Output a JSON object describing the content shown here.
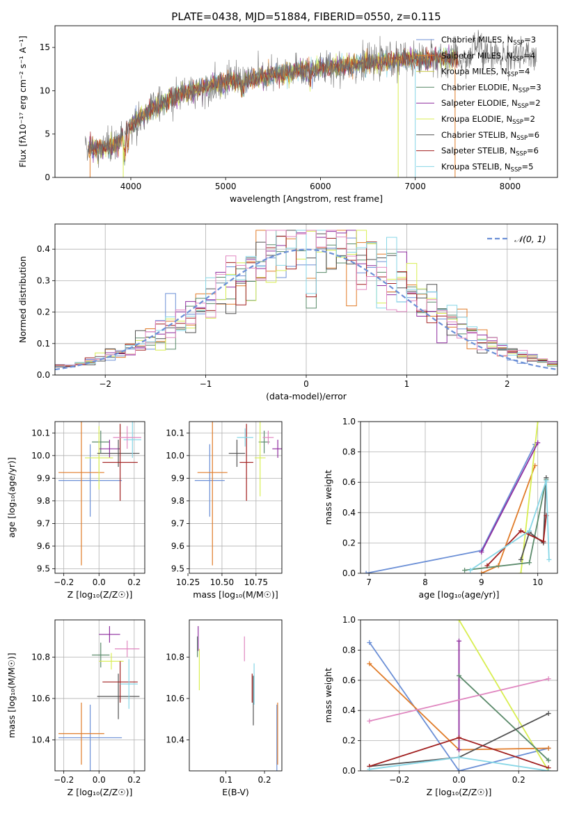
{
  "title": "PLATE=0438, MJD=51884, FIBERID=0550, z=0.115",
  "colors": [
    "#6b8fd6",
    "#e07b28",
    "#c9c94a",
    "#5a8a6a",
    "#8e2c9e",
    "#d8ee50",
    "#505050",
    "#a01e1e",
    "#86d6e6",
    "#e087c0"
  ],
  "chart_data": [
    {
      "id": "spectrum",
      "type": "line",
      "xlabel": "wavelength [Angstrom, rest frame]",
      "ylabel": "Flux [fλ10⁻¹⁷ erg cm⁻² s⁻¹ A⁻¹]",
      "xlim": [
        3200,
        8500
      ],
      "ylim": [
        0,
        17.5
      ],
      "xticks": [
        4000,
        5000,
        6000,
        7000,
        8000
      ],
      "yticks": [
        0,
        5,
        10,
        15
      ],
      "grid": false,
      "legend_position": "top-right",
      "legend": [
        {
          "label": "Chabrier MILES, N_SSP=3",
          "color": "#6b8fd6"
        },
        {
          "label": "Salpeter MILES, N_SSP=4",
          "color": "#e07b28"
        },
        {
          "label": "Kroupa MILES, N_SSP=4",
          "color": "#c9c94a"
        },
        {
          "label": "Chabrier ELODIE, N_SSP=3",
          "color": "#5a8a6a"
        },
        {
          "label": "Salpeter ELODIE, N_SSP=2",
          "color": "#8e2c9e"
        },
        {
          "label": "Kroupa ELODIE, N_SSP=2",
          "color": "#d8ee50"
        },
        {
          "label": "Chabrier STELIB, N_SSP=6",
          "color": "#505050"
        },
        {
          "label": "Salpeter STELIB, N_SSP=6",
          "color": "#a01e1e"
        },
        {
          "label": "Kroupa STELIB, N_SSP=5",
          "color": "#86d6e6"
        }
      ],
      "continuum": [
        {
          "x": 3550,
          "y": 3.3
        },
        {
          "x": 3700,
          "y": 3.4
        },
        {
          "x": 3850,
          "y": 3.8
        },
        {
          "x": 3950,
          "y": 5.2
        },
        {
          "x": 4050,
          "y": 6.5
        },
        {
          "x": 4200,
          "y": 7.8
        },
        {
          "x": 4350,
          "y": 8.6
        },
        {
          "x": 4500,
          "y": 9.5
        },
        {
          "x": 4700,
          "y": 10.2
        },
        {
          "x": 4900,
          "y": 10.8
        },
        {
          "x": 5100,
          "y": 11.2
        },
        {
          "x": 5300,
          "y": 11.4
        },
        {
          "x": 5500,
          "y": 11.8
        },
        {
          "x": 5700,
          "y": 12.2
        },
        {
          "x": 5900,
          "y": 12.4
        },
        {
          "x": 6100,
          "y": 12.7
        },
        {
          "x": 6300,
          "y": 12.9
        },
        {
          "x": 6500,
          "y": 13.1
        },
        {
          "x": 6700,
          "y": 13.4
        },
        {
          "x": 6900,
          "y": 13.6
        },
        {
          "x": 7100,
          "y": 13.7
        },
        {
          "x": 7300,
          "y": 13.8
        },
        {
          "x": 7500,
          "y": 13.6
        },
        {
          "x": 7700,
          "y": 13.9
        },
        {
          "x": 7900,
          "y": 14.0
        },
        {
          "x": 8100,
          "y": 14.1
        },
        {
          "x": 8250,
          "y": 13.8
        }
      ]
    },
    {
      "id": "residuals",
      "type": "histogram",
      "xlabel": "(data-model)/error",
      "ylabel": "Normed distribution",
      "xlim": [
        -2.5,
        2.5
      ],
      "ylim": [
        0,
        0.48
      ],
      "xticks": [
        -2,
        -1,
        0,
        1,
        2
      ],
      "yticks": [
        0.0,
        0.1,
        0.2,
        0.3,
        0.4
      ],
      "grid": true,
      "legend_position": "top-right",
      "legend": [
        {
          "label": "𝒩(0, 1)",
          "color": "#6b8fd6"
        }
      ],
      "bin_width": 0.1
    },
    {
      "id": "age-vs-Z",
      "type": "scatter",
      "xlabel": "Z [log₁₀(Z/Z☉)]",
      "ylabel": "age  [log₁₀(age/yr)]",
      "xlim": [
        -0.25,
        0.26
      ],
      "ylim": [
        9.48,
        10.15
      ],
      "xticks": [
        -0.2,
        0.0,
        0.2
      ],
      "xticklabels": [
        "−0.2",
        "0.0",
        "0.2"
      ],
      "yticks": [
        9.5,
        9.6,
        9.7,
        9.8,
        9.9,
        10.0,
        10.1
      ],
      "grid": true,
      "points": [
        {
          "x": -0.05,
          "y": 9.89,
          "xerr": 0.18,
          "yerr": 0.16,
          "color": "#6b8fd6"
        },
        {
          "x": -0.1,
          "y": 9.925,
          "xerr": 0.13,
          "yerr": 0.41,
          "color": "#e07b28"
        },
        {
          "x": 0.01,
          "y": 10.06,
          "xerr": 0.05,
          "yerr": 0.05,
          "color": "#5a8a6a"
        },
        {
          "x": 0.06,
          "y": 10.03,
          "xerr": 0.06,
          "yerr": 0.04,
          "color": "#8e2c9e"
        },
        {
          "x": 0.0,
          "y": 9.99,
          "xerr": 0.08,
          "yerr": 0.14,
          "color": "#d8ee50"
        },
        {
          "x": 0.11,
          "y": 10.01,
          "xerr": 0.12,
          "yerr": 0.06,
          "color": "#505050"
        },
        {
          "x": 0.12,
          "y": 9.97,
          "xerr": 0.1,
          "yerr": 0.17,
          "color": "#a01e1e"
        },
        {
          "x": 0.19,
          "y": 10.07,
          "xerr": 0.05,
          "yerr": 0.08,
          "color": "#86d6e6"
        },
        {
          "x": 0.16,
          "y": 10.08,
          "xerr": 0.08,
          "yerr": 0.05,
          "color": "#e087c0"
        }
      ]
    },
    {
      "id": "age-vs-mass",
      "type": "scatter",
      "xlabel": "mass [log₁₀(M/M☉)]",
      "ylabel": "",
      "xlim": [
        10.26,
        10.94
      ],
      "ylim": [
        9.48,
        10.15
      ],
      "xticks": [
        10.25,
        10.5,
        10.75
      ],
      "xticklabels": [
        "10.25",
        "10.50",
        "10.75"
      ],
      "yticks": [
        9.5,
        9.6,
        9.7,
        9.8,
        9.9,
        10.0,
        10.1
      ],
      "grid": true,
      "points": [
        {
          "x": 10.41,
          "y": 9.89,
          "xerr": 0.11,
          "yerr": 0.16,
          "color": "#6b8fd6"
        },
        {
          "x": 10.43,
          "y": 9.925,
          "xerr": 0.11,
          "yerr": 0.41,
          "color": "#e07b28"
        },
        {
          "x": 10.81,
          "y": 10.06,
          "xerr": 0.04,
          "yerr": 0.05,
          "color": "#5a8a6a"
        },
        {
          "x": 10.91,
          "y": 10.03,
          "xerr": 0.04,
          "yerr": 0.04,
          "color": "#8e2c9e"
        },
        {
          "x": 10.78,
          "y": 9.99,
          "xerr": 0.04,
          "yerr": 0.17,
          "color": "#d8ee50"
        },
        {
          "x": 10.61,
          "y": 10.01,
          "xerr": 0.06,
          "yerr": 0.06,
          "color": "#505050"
        },
        {
          "x": 10.68,
          "y": 9.97,
          "xerr": 0.05,
          "yerr": 0.17,
          "color": "#a01e1e"
        },
        {
          "x": 10.67,
          "y": 10.08,
          "xerr": 0.06,
          "yerr": 0.04,
          "color": "#86d6e6"
        },
        {
          "x": 10.84,
          "y": 10.08,
          "xerr": 0.04,
          "yerr": 0.03,
          "color": "#e087c0"
        }
      ]
    },
    {
      "id": "weight-vs-age",
      "type": "line",
      "xlabel": "age  [log₁₀(age/yr)]",
      "ylabel": "mass weight",
      "xlim": [
        6.85,
        10.35
      ],
      "ylim": [
        0,
        1.0
      ],
      "xticks": [
        7,
        8,
        9,
        10
      ],
      "yticks": [
        0.0,
        0.2,
        0.4,
        0.6,
        0.8,
        1.0
      ],
      "grid": true,
      "series": [
        {
          "color": "#6b8fd6",
          "x": [
            6.95,
            9.0,
            9.95
          ],
          "y": [
            0.0,
            0.15,
            0.85
          ]
        },
        {
          "color": "#e07b28",
          "x": [
            9.0,
            9.3,
            9.95
          ],
          "y": [
            0.0,
            0.05,
            0.71
          ]
        },
        {
          "color": "#d8ee50",
          "x": [
            9.7,
            10.0
          ],
          "y": [
            0.0,
            1.0
          ]
        },
        {
          "color": "#8e2c9e",
          "x": [
            9.0,
            10.0
          ],
          "y": [
            0.14,
            0.86
          ]
        },
        {
          "color": "#5a8a6a",
          "x": [
            8.7,
            9.85,
            10.15
          ],
          "y": [
            0.02,
            0.07,
            0.62
          ]
        },
        {
          "color": "#505050",
          "x": [
            9.7,
            9.85,
            10.1,
            10.15
          ],
          "y": [
            0.09,
            0.27,
            0.2,
            0.63
          ]
        },
        {
          "color": "#a01e1e",
          "x": [
            9.1,
            9.7,
            10.1,
            10.15
          ],
          "y": [
            0.05,
            0.28,
            0.21,
            0.38
          ]
        },
        {
          "color": "#86d6e6",
          "x": [
            8.8,
            9.85,
            10.15,
            10.2
          ],
          "y": [
            0.02,
            0.28,
            0.61,
            0.09
          ]
        }
      ]
    },
    {
      "id": "mass-vs-Z",
      "type": "scatter",
      "xlabel": "Z [log₁₀(Z/Z☉)]",
      "ylabel": "mass [log₁₀(M/M☉)]",
      "xlim": [
        -0.25,
        0.26
      ],
      "ylim": [
        10.25,
        10.98
      ],
      "xticks": [
        -0.2,
        0.0,
        0.2
      ],
      "xticklabels": [
        "−0.2",
        "0.0",
        "0.2"
      ],
      "yticks": [
        10.4,
        10.6,
        10.8
      ],
      "grid": true,
      "points": [
        {
          "x": -0.05,
          "y": 10.41,
          "xerr": 0.18,
          "yerr": 0.16,
          "color": "#6b8fd6"
        },
        {
          "x": -0.1,
          "y": 10.43,
          "xerr": 0.13,
          "yerr": 0.15,
          "color": "#e07b28"
        },
        {
          "x": 0.01,
          "y": 10.81,
          "xerr": 0.05,
          "yerr": 0.06,
          "color": "#5a8a6a"
        },
        {
          "x": 0.06,
          "y": 10.91,
          "xerr": 0.06,
          "yerr": 0.04,
          "color": "#8e2c9e"
        },
        {
          "x": 0.07,
          "y": 10.78,
          "xerr": 0.07,
          "yerr": 0.04,
          "color": "#d8ee50"
        },
        {
          "x": 0.11,
          "y": 10.61,
          "xerr": 0.12,
          "yerr": 0.11,
          "color": "#505050"
        },
        {
          "x": 0.12,
          "y": 10.68,
          "xerr": 0.1,
          "yerr": 0.1,
          "color": "#a01e1e"
        },
        {
          "x": 0.17,
          "y": 10.67,
          "xerr": 0.05,
          "yerr": 0.12,
          "color": "#86d6e6"
        },
        {
          "x": 0.16,
          "y": 10.84,
          "xerr": 0.07,
          "yerr": 0.04,
          "color": "#e087c0"
        }
      ]
    },
    {
      "id": "mass-vs-ebv",
      "type": "scatter",
      "xlabel": "E(B-V)",
      "ylabel": "",
      "xlim": [
        0.005,
        0.245
      ],
      "ylim": [
        10.25,
        10.98
      ],
      "xticks": [
        0.1,
        0.2
      ],
      "xticklabels": [
        "0.1",
        "0.2"
      ],
      "yticks": [
        10.4,
        10.6,
        10.8
      ],
      "grid": false,
      "points": [
        {
          "x": 0.026,
          "y": 10.85,
          "xerr": 0.0,
          "yerr": 0.05,
          "color": "#5a8a6a"
        },
        {
          "x": 0.028,
          "y": 10.89,
          "xerr": 0.0,
          "yerr": 0.06,
          "color": "#8e2c9e"
        },
        {
          "x": 0.031,
          "y": 10.74,
          "xerr": 0.0,
          "yerr": 0.1,
          "color": "#d8ee50"
        },
        {
          "x": 0.148,
          "y": 10.84,
          "xerr": 0.0,
          "yerr": 0.06,
          "color": "#e087c0"
        },
        {
          "x": 0.168,
          "y": 10.65,
          "xerr": 0.0,
          "yerr": 0.07,
          "color": "#a01e1e"
        },
        {
          "x": 0.171,
          "y": 10.59,
          "xerr": 0.0,
          "yerr": 0.12,
          "color": "#505050"
        },
        {
          "x": 0.173,
          "y": 10.67,
          "xerr": 0.0,
          "yerr": 0.1,
          "color": "#86d6e6"
        },
        {
          "x": 0.232,
          "y": 10.41,
          "xerr": 0.0,
          "yerr": 0.16,
          "color": "#6b8fd6"
        },
        {
          "x": 0.234,
          "y": 10.43,
          "xerr": 0.0,
          "yerr": 0.15,
          "color": "#e07b28"
        }
      ]
    },
    {
      "id": "weight-vs-Z",
      "type": "line",
      "xlabel": "Z [log₁₀(Z/Z☉)]",
      "ylabel": "mass weight",
      "xlim": [
        -0.33,
        0.33
      ],
      "ylim": [
        0,
        1.0
      ],
      "xticks": [
        -0.2,
        0.0,
        0.2
      ],
      "xticklabels": [
        "−0.2",
        "0.0",
        "0.2"
      ],
      "yticks": [
        0.0,
        0.2,
        0.4,
        0.6,
        0.8,
        1.0
      ],
      "grid": true,
      "series": [
        {
          "color": "#6b8fd6",
          "x": [
            -0.3,
            0.0,
            0.3
          ],
          "y": [
            0.85,
            0.0,
            0.15
          ]
        },
        {
          "color": "#e07b28",
          "x": [
            -0.3,
            0.0,
            0.3
          ],
          "y": [
            0.71,
            0.14,
            0.15
          ]
        },
        {
          "color": "#d8ee50",
          "x": [
            0.0,
            0.3
          ],
          "y": [
            1.0,
            0.0
          ]
        },
        {
          "color": "#8e2c9e",
          "x": [
            0.0,
            0.0
          ],
          "y": [
            0.86,
            0.14
          ]
        },
        {
          "color": "#5a8a6a",
          "x": [
            0.0,
            0.3
          ],
          "y": [
            0.63,
            0.07
          ]
        },
        {
          "color": "#505050",
          "x": [
            -0.3,
            0.0,
            0.3
          ],
          "y": [
            0.03,
            0.09,
            0.38
          ]
        },
        {
          "color": "#a01e1e",
          "x": [
            -0.3,
            0.0,
            0.3
          ],
          "y": [
            0.03,
            0.22,
            0.02
          ]
        },
        {
          "color": "#86d6e6",
          "x": [
            -0.3,
            0.0,
            0.3
          ],
          "y": [
            0.01,
            0.09,
            0.0
          ]
        },
        {
          "color": "#e087c0",
          "x": [
            -0.3,
            0.3
          ],
          "y": [
            0.33,
            0.61
          ]
        }
      ]
    }
  ]
}
